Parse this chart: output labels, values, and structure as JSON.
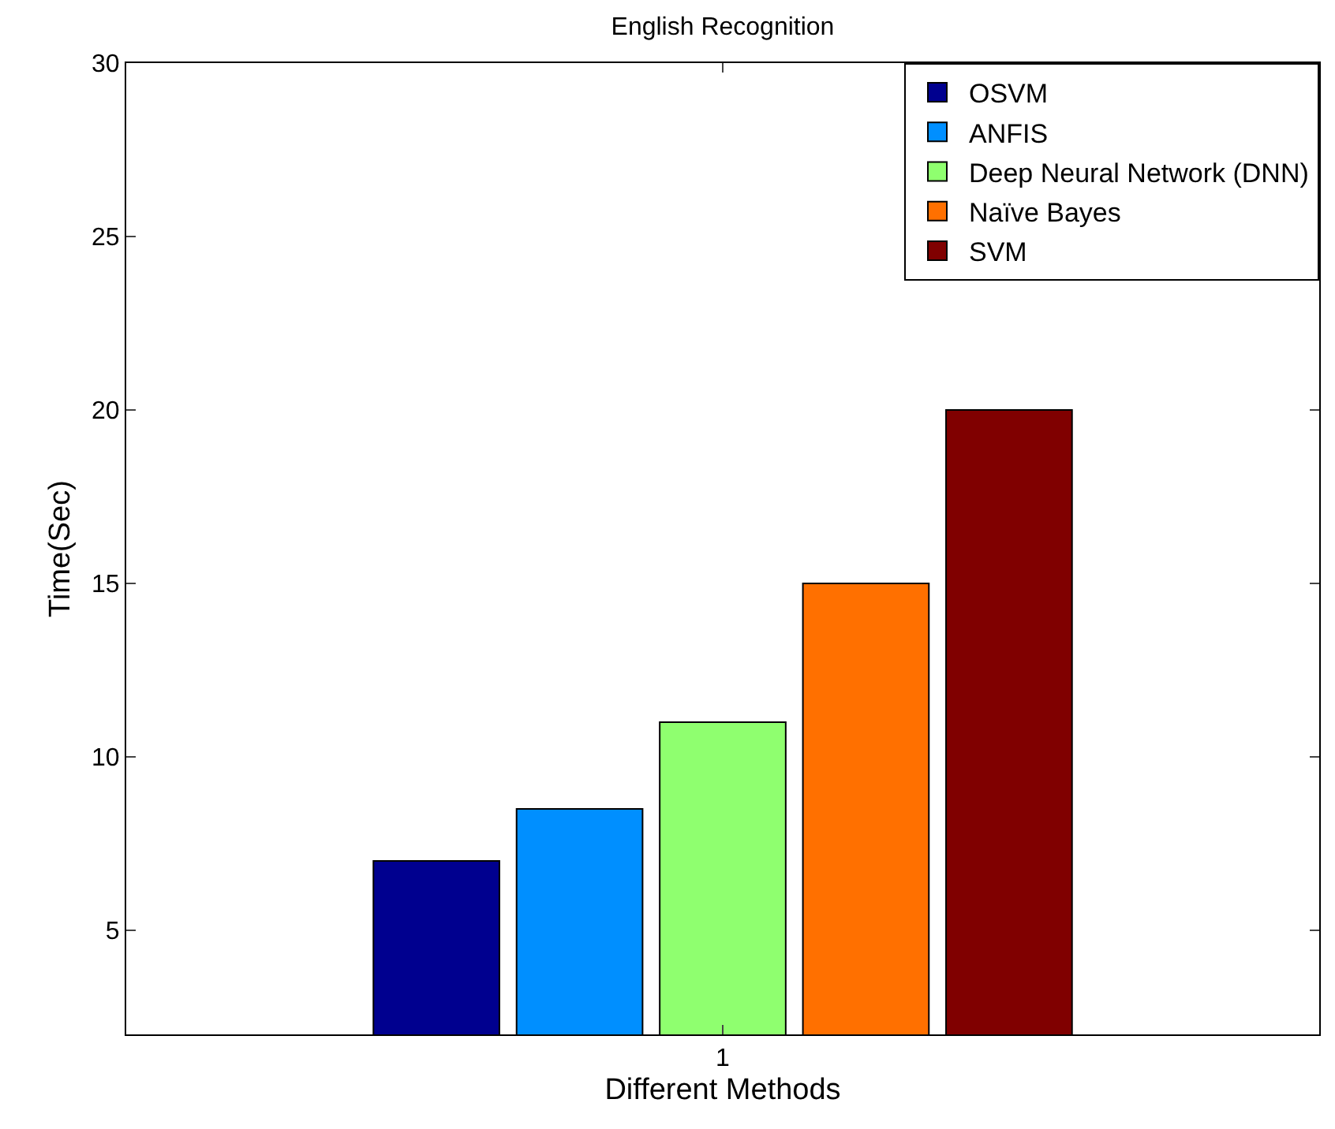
{
  "chart_data": {
    "type": "bar",
    "title": "English Recognition",
    "xlabel": "Different Methods",
    "ylabel": "Time(Sec)",
    "categories": [
      "1"
    ],
    "series": [
      {
        "name": "OSVM",
        "color": "#00008f",
        "values": [
          7
        ]
      },
      {
        "name": "ANFIS",
        "color": "#008fff",
        "values": [
          8.5
        ]
      },
      {
        "name": "Deep Neural Network (DNN)",
        "color": "#8fff6f",
        "values": [
          11
        ]
      },
      {
        "name": "Naïve Bayes",
        "color": "#ff7000",
        "values": [
          15
        ]
      },
      {
        "name": "SVM",
        "color": "#800000",
        "values": [
          20
        ]
      }
    ],
    "ylim": [
      2,
      30
    ],
    "yticks": [
      5,
      10,
      15,
      20,
      25,
      30
    ],
    "legend": "top right"
  }
}
